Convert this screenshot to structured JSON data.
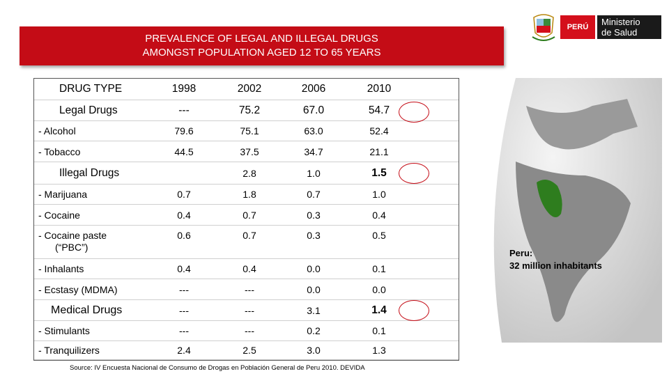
{
  "banner": {
    "line1": "PREVALENCE OF LEGAL AND ILLEGAL DRUGS",
    "line2": "AMONGST POPULATION AGED 12 TO 65 YEARS"
  },
  "logo": {
    "country": "PERÚ",
    "ministry_line1": "Ministerio",
    "ministry_line2": "de Salud"
  },
  "header": {
    "label": "DRUG TYPE",
    "years": [
      "1998",
      "2002",
      "2006",
      "2010"
    ]
  },
  "rows": [
    {
      "label": "Legal Drugs",
      "values": [
        "---",
        "75.2",
        "67.0",
        "54.7"
      ]
    },
    {
      "label": "-   Alcohol",
      "values": [
        "79.6",
        "75.1",
        "63.0",
        "52.4"
      ]
    },
    {
      "label": "-   Tobacco",
      "values": [
        "44.5",
        "37.5",
        "34.7",
        "21.1"
      ]
    },
    {
      "label": "Illegal Drugs",
      "values": [
        "",
        "2.8",
        "1.0",
        "1.5"
      ]
    },
    {
      "label": "-   Marijuana",
      "values": [
        "0.7",
        "1.8",
        "0.7",
        "1.0"
      ]
    },
    {
      "label": "-   Cocaine",
      "values": [
        "0.4",
        "0.7",
        "0.3",
        "0.4"
      ]
    },
    {
      "label": "-   Cocaine paste",
      "label2": "(“PBC”)",
      "values": [
        "0.6",
        "0.7",
        "0.3",
        "0.5"
      ]
    },
    {
      "label": "-   Inhalants",
      "values": [
        "0.4",
        "0.4",
        "0.0",
        "0.1"
      ]
    },
    {
      "label": "-   Ecstasy (MDMA)",
      "values": [
        "---",
        "---",
        "0.0",
        "0.0"
      ]
    },
    {
      "label": "Medical Drugs",
      "values": [
        "---",
        "---",
        "3.1",
        "1.4"
      ]
    },
    {
      "label": "-   Stimulants",
      "values": [
        "---",
        "---",
        "0.2",
        "0.1"
      ]
    },
    {
      "label": "-   Tranquilizers",
      "values": [
        "2.4",
        "2.5",
        "3.0",
        "1.3"
      ]
    }
  ],
  "map_label": {
    "line1": "Peru:",
    "line2": "32 million inhabitants"
  },
  "source": "Source: IV Encuesta Nacional de Consumo de Drogas en Población General de Peru 2010. DEVIDA",
  "colors": {
    "banner": "#c40c16",
    "highlight_circle": "#c40c16",
    "peru_on_map": "#2e7d1e"
  }
}
